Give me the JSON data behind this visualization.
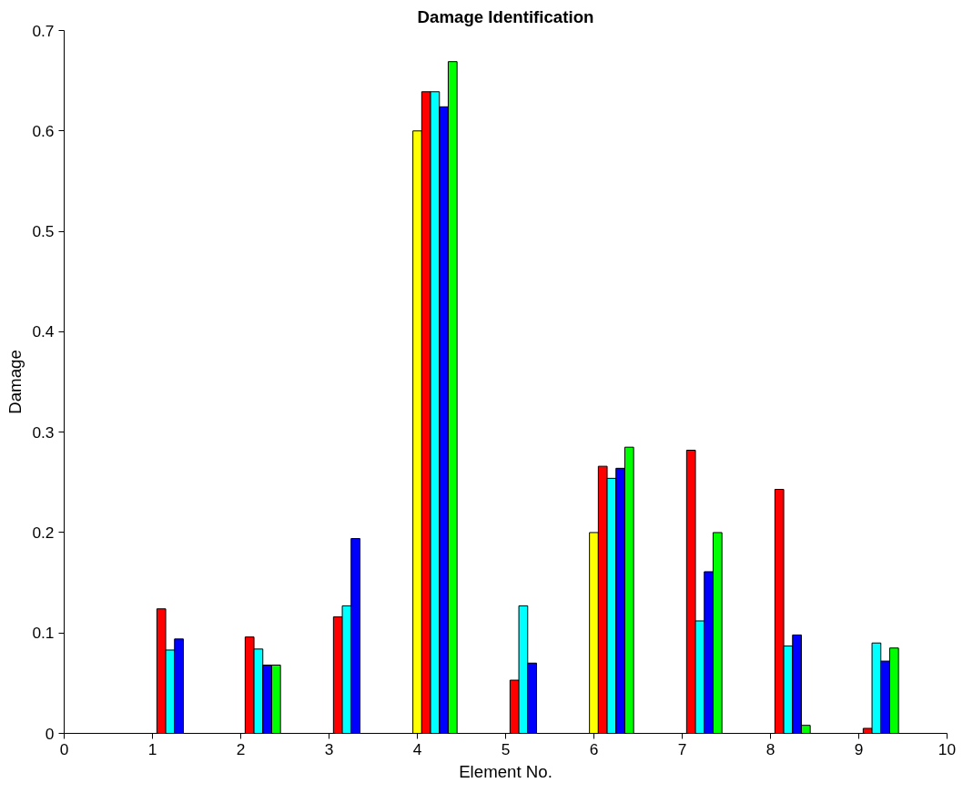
{
  "chart_data": {
    "type": "bar",
    "title": "Damage Identification",
    "xlabel": "Element No.",
    "ylabel": "Damage",
    "x": [
      1,
      2,
      3,
      4,
      5,
      6,
      7,
      8,
      9
    ],
    "series": [
      {
        "color": "#ffff00",
        "values": [
          null,
          null,
          null,
          0.6,
          null,
          0.2,
          null,
          null,
          null
        ]
      },
      {
        "color": "#ff0000",
        "values": [
          0.124,
          0.096,
          0.116,
          0.639,
          0.053,
          0.266,
          0.282,
          0.243,
          0.005
        ]
      },
      {
        "color": "#00ffff",
        "values": [
          0.083,
          0.084,
          0.127,
          0.639,
          0.127,
          0.254,
          0.112,
          0.087,
          0.09
        ]
      },
      {
        "color": "#0000ff",
        "values": [
          0.094,
          0.068,
          0.194,
          0.624,
          0.07,
          0.264,
          0.161,
          0.098,
          0.072
        ]
      },
      {
        "color": "#00ff00",
        "values": [
          null,
          0.068,
          null,
          0.669,
          null,
          0.285,
          0.2,
          0.008,
          0.085
        ]
      }
    ],
    "xlim": [
      0,
      10
    ],
    "xticks": [
      0,
      1,
      2,
      3,
      4,
      5,
      6,
      7,
      8,
      9,
      10
    ],
    "ylim": [
      0,
      0.7
    ],
    "yticks": [
      0,
      0.1,
      0.2,
      0.3,
      0.4,
      0.5,
      0.6,
      0.7
    ],
    "grid": false
  }
}
